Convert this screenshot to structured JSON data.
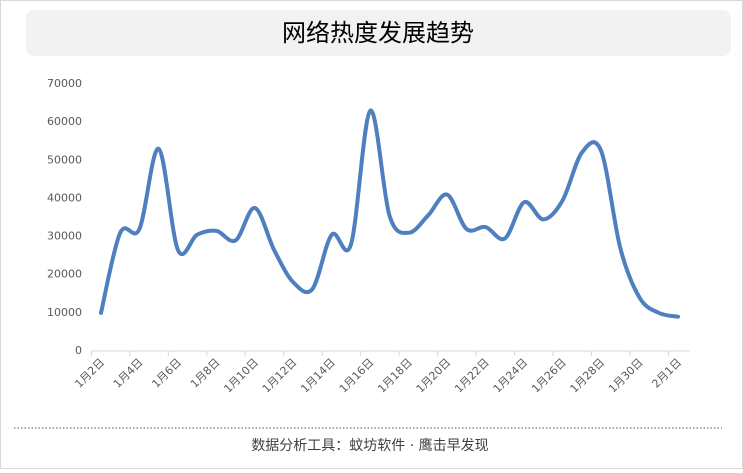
{
  "chart_data": {
    "type": "line",
    "title": "网络热度发展趋势",
    "categories": [
      "1月2日",
      null,
      "1月4日",
      null,
      "1月6日",
      null,
      "1月8日",
      null,
      "1月10日",
      null,
      "1月12日",
      null,
      "1月14日",
      null,
      "1月16日",
      null,
      "1月18日",
      null,
      "1月20日",
      null,
      "1月22日",
      null,
      "1月24日",
      null,
      "1月26日",
      null,
      "1月28日",
      null,
      "1月30日",
      null,
      "2月1日"
    ],
    "series": [
      {
        "color": "#4f7fbf",
        "values": [
          10000,
          31000,
          32000,
          53000,
          26500,
          30500,
          31500,
          29000,
          37500,
          26500,
          18000,
          16300,
          30500,
          28000,
          63000,
          35500,
          31000,
          35500,
          41000,
          32000,
          32500,
          29500,
          39000,
          34500,
          39500,
          52000,
          52500,
          27000,
          14000,
          10000,
          9000
        ]
      }
    ],
    "ylim": [
      0,
      70000
    ],
    "yticks": [
      0,
      10000,
      20000,
      30000,
      40000,
      50000,
      60000,
      70000
    ],
    "grid": false,
    "footer": "数据分析工具：蚊坊软件 · 鹰击早发现"
  }
}
